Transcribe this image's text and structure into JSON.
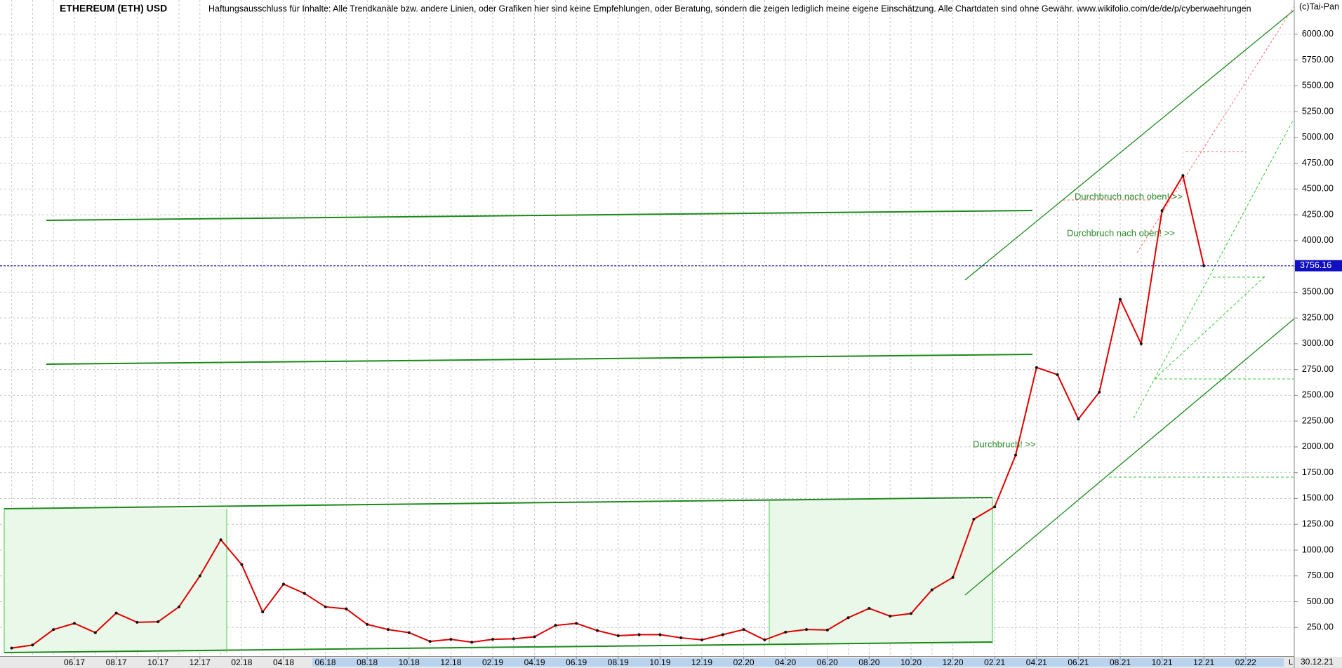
{
  "chart_data": {
    "type": "line",
    "title": "ETHEREUM (ETH) USD",
    "disclaimer": "Haftungsausschluss für Inhalte: Alle Trendkanäle bzw. andere Linien, oder Grafiken hier sind keine Empfehlungen, oder Beratung, sondern die zeigen lediglich meine eigene Einschätzung. Alle Chartdaten sind ohne Gewähr.  www.wikifolio.com/de/de/p/cyberwaehrungen",
    "copyright": "(c)Tai-Pan",
    "categories": [
      null,
      null,
      null,
      "06.17",
      null,
      "08.17",
      null,
      "10.17",
      null,
      "12.17",
      null,
      "02.18",
      null,
      "04.18",
      null,
      "06.18",
      null,
      "08.18",
      null,
      "10.18",
      null,
      "12.18",
      null,
      "02.19",
      null,
      "04.19",
      null,
      "06.19",
      null,
      "08.19",
      null,
      "10.19",
      null,
      "12.19",
      null,
      "02.20",
      null,
      "04.20",
      null,
      "06.20",
      null,
      "08.20",
      null,
      "10.20",
      null,
      "12.20",
      null,
      "02.21",
      null,
      "04.21",
      null,
      "06.21",
      null,
      "08.21",
      null,
      "10.21",
      null,
      "12.21",
      null,
      "02.22"
    ],
    "values": [
      50,
      80,
      230,
      290,
      200,
      390,
      300,
      305,
      450,
      750,
      1100,
      860,
      400,
      670,
      580,
      450,
      430,
      280,
      230,
      200,
      115,
      135,
      107,
      135,
      140,
      160,
      270,
      290,
      220,
      170,
      180,
      180,
      150,
      130,
      180,
      230,
      130,
      205,
      230,
      225,
      345,
      435,
      360,
      385,
      615,
      735,
      1300,
      1420,
      1920,
      2770,
      2700,
      2270,
      2530,
      3430,
      3000,
      4290,
      4630,
      3756,
      null,
      null
    ],
    "color": "#e00000",
    "ylim": [
      0,
      6250
    ],
    "yticks": [
      {
        "value": 250,
        "label": "250.00"
      },
      {
        "value": 500,
        "label": "500.00"
      },
      {
        "value": 750,
        "label": "750.00"
      },
      {
        "value": 1000,
        "label": "1000.00"
      },
      {
        "value": 1250,
        "label": "1250.00"
      },
      {
        "value": 1500,
        "label": "1500.00"
      },
      {
        "value": 1750,
        "label": "1750.00"
      },
      {
        "value": 2000,
        "label": "2000.00"
      },
      {
        "value": 2250,
        "label": "2250.00"
      },
      {
        "value": 2500,
        "label": "2500.00"
      },
      {
        "value": 2750,
        "label": "2750.00"
      },
      {
        "value": 3000,
        "label": "3000.00"
      },
      {
        "value": 3250,
        "label": "3250.00"
      },
      {
        "value": 3500,
        "label": "3500.00"
      },
      {
        "value": 3750,
        "label": "3750.00"
      },
      {
        "value": 4000,
        "label": "4000.00"
      },
      {
        "value": 4250,
        "label": "4250.00"
      },
      {
        "value": 4500,
        "label": "4500.00"
      },
      {
        "value": 4750,
        "label": "4750.00"
      },
      {
        "value": 5000,
        "label": "5000.00"
      },
      {
        "value": 5250,
        "label": "5250.00"
      },
      {
        "value": 5500,
        "label": "5500.00"
      },
      {
        "value": 5750,
        "label": "5750.00"
      },
      {
        "value": 6000,
        "label": "6000.00"
      }
    ],
    "grid": true,
    "current_price": 3756.16,
    "last_date": "30.12.21",
    "axis_marker": "L",
    "annotations": [
      "Durchbruch nach oben! >>",
      "Durchbruch nach oben! >>",
      "Durchbruch! >>"
    ]
  }
}
